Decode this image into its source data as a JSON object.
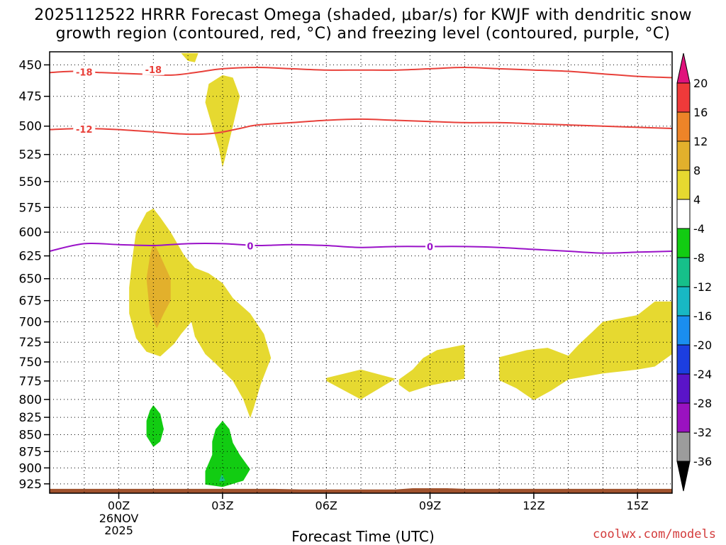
{
  "title_line1": "2025112522 HRRR Forecast Omega (shaded, μbar/s) for KWJF with dendritic snow",
  "title_line2": "growth region (contoured, red, °C) and freezing level (contoured, purple, °C)",
  "credit": "coolwx.com/models",
  "colors": {
    "snow_contour": "#e8403a",
    "freezing_contour": "#9a12c8",
    "ground": "#a0522d",
    "positive_shade": "#e6d930",
    "strong_positive_shade": "#dea52e",
    "negative_shade": "#12cc12"
  },
  "chart_data": {
    "type": "time-height contour",
    "xlabel": "Forecast Time (UTC)",
    "ylabel": "",
    "x_range_hours": [
      -2.0,
      16.0
    ],
    "x_ticks": [
      {
        "hour": 0,
        "label": "00Z",
        "sub1": "26NOV",
        "sub2": "2025"
      },
      {
        "hour": 3,
        "label": "03Z",
        "sub1": "",
        "sub2": ""
      },
      {
        "hour": 6,
        "label": "06Z",
        "sub1": "",
        "sub2": ""
      },
      {
        "hour": 9,
        "label": "09Z",
        "sub1": "",
        "sub2": ""
      },
      {
        "hour": 12,
        "label": "12Z",
        "sub1": "",
        "sub2": ""
      },
      {
        "hour": 15,
        "label": "15Z",
        "sub1": "",
        "sub2": ""
      }
    ],
    "y_range_hPa": [
      440,
      940
    ],
    "y_scale": "log-pressure",
    "y_ticks": [
      450,
      475,
      500,
      525,
      550,
      575,
      600,
      625,
      650,
      675,
      700,
      725,
      750,
      775,
      800,
      825,
      850,
      875,
      900,
      925
    ],
    "grid": "dotted",
    "colorbar": {
      "ticks": [
        "20",
        "16",
        "12",
        "8",
        "4",
        "-4",
        "-8",
        "-12",
        "-16",
        "-20",
        "-24",
        "-28",
        "-32",
        "-36"
      ],
      "bins": [
        {
          "color": "#e0127c",
          "range": ">20"
        },
        {
          "color": "#ef3a3a",
          "range": "16 to 20"
        },
        {
          "color": "#ed8428",
          "range": "12 to 16"
        },
        {
          "color": "#e2b02c",
          "range": "8 to 12"
        },
        {
          "color": "#e6d930",
          "range": "4 to 8"
        },
        {
          "color": "#ffffff",
          "range": "-4 to 4"
        },
        {
          "color": "#12cc12",
          "range": "-8 to -4"
        },
        {
          "color": "#16c08a",
          "range": "-12 to -8"
        },
        {
          "color": "#18b8c4",
          "range": "-16 to -12"
        },
        {
          "color": "#1a8ef0",
          "range": "-20 to -16"
        },
        {
          "color": "#1c3ee0",
          "range": "-24 to -20"
        },
        {
          "color": "#5a14c8",
          "range": "-28 to -24"
        },
        {
          "color": "#9a12c0",
          "range": "-32 to -28"
        },
        {
          "color": "#9c9c9c",
          "range": "-36 to -32"
        },
        {
          "color": "#000000",
          "range": "<-36"
        }
      ]
    },
    "contours": [
      {
        "name": "-18C isotherm",
        "label": "-18",
        "color": "#e8403a",
        "points": [
          [
            -2.0,
            456
          ],
          [
            -1.3,
            455
          ],
          [
            -0.5,
            456
          ],
          [
            0.5,
            457
          ],
          [
            1.5,
            458
          ],
          [
            2.2,
            456
          ],
          [
            3.0,
            453
          ],
          [
            4.0,
            452
          ],
          [
            5.0,
            453
          ],
          [
            6.0,
            454
          ],
          [
            7.0,
            454
          ],
          [
            8.0,
            454
          ],
          [
            9.0,
            453
          ],
          [
            10.0,
            452
          ],
          [
            11.0,
            453
          ],
          [
            12.0,
            454
          ],
          [
            13.0,
            455
          ],
          [
            14.0,
            457
          ],
          [
            15.0,
            459
          ],
          [
            16.0,
            460
          ]
        ],
        "labels_at": [
          [
            -1.0,
            455.5
          ],
          [
            1.0,
            453.5
          ]
        ]
      },
      {
        "name": "-12C isotherm",
        "label": "-12",
        "color": "#e8403a",
        "points": [
          [
            -2.0,
            503
          ],
          [
            -1.0,
            502
          ],
          [
            0.0,
            503
          ],
          [
            1.0,
            505
          ],
          [
            2.0,
            507
          ],
          [
            2.8,
            506
          ],
          [
            3.5,
            502
          ],
          [
            4.0,
            499
          ],
          [
            5.0,
            497
          ],
          [
            6.0,
            495
          ],
          [
            7.0,
            494
          ],
          [
            8.0,
            495
          ],
          [
            9.0,
            496
          ],
          [
            10.0,
            497
          ],
          [
            11.0,
            497
          ],
          [
            12.0,
            498
          ],
          [
            13.0,
            499
          ],
          [
            14.0,
            500
          ],
          [
            15.0,
            501
          ],
          [
            16.0,
            502
          ]
        ],
        "labels_at": [
          [
            -1.0,
            502.5
          ]
        ]
      },
      {
        "name": "0C freezing level",
        "label": "0",
        "color": "#9a12c8",
        "points": [
          [
            -2.0,
            620
          ],
          [
            -1.0,
            612
          ],
          [
            0.0,
            613
          ],
          [
            1.0,
            614
          ],
          [
            2.0,
            612
          ],
          [
            3.0,
            612
          ],
          [
            4.0,
            614
          ],
          [
            5.0,
            613
          ],
          [
            6.0,
            614
          ],
          [
            7.0,
            616
          ],
          [
            8.0,
            615
          ],
          [
            9.0,
            615
          ],
          [
            10.0,
            615
          ],
          [
            11.0,
            616
          ],
          [
            12.0,
            618
          ],
          [
            13.0,
            620
          ],
          [
            14.0,
            622
          ],
          [
            15.0,
            621
          ],
          [
            16.0,
            620
          ]
        ],
        "labels_at": [
          [
            3.8,
            614.5
          ],
          [
            9.0,
            615
          ]
        ]
      }
    ],
    "shaded_regions": [
      {
        "value_bin": "4 to 8",
        "points": [
          [
            1.8,
            441
          ],
          [
            2.3,
            441
          ],
          [
            2.2,
            448
          ],
          [
            2.0,
            447
          ]
        ]
      },
      {
        "value_bin": "4 to 8",
        "points": [
          [
            3.0,
            458
          ],
          [
            3.3,
            460
          ],
          [
            3.5,
            475
          ],
          [
            3.3,
            500
          ],
          [
            3.1,
            525
          ],
          [
            3.0,
            537
          ],
          [
            2.9,
            520
          ],
          [
            2.7,
            500
          ],
          [
            2.5,
            480
          ],
          [
            2.6,
            465
          ]
        ]
      },
      {
        "value_bin": "4 to 8",
        "points": [
          [
            0.5,
            600
          ],
          [
            0.8,
            580
          ],
          [
            1.0,
            576
          ],
          [
            1.2,
            585
          ],
          [
            1.5,
            600
          ],
          [
            1.9,
            625
          ],
          [
            2.2,
            638
          ],
          [
            2.6,
            644
          ],
          [
            3.0,
            655
          ],
          [
            3.3,
            672
          ],
          [
            3.8,
            690
          ],
          [
            4.2,
            715
          ],
          [
            4.4,
            745
          ],
          [
            4.1,
            780
          ],
          [
            3.9,
            812
          ],
          [
            3.8,
            826
          ],
          [
            3.6,
            800
          ],
          [
            3.3,
            775
          ],
          [
            2.8,
            752
          ],
          [
            2.5,
            740
          ],
          [
            2.2,
            718
          ],
          [
            2.1,
            700
          ],
          [
            1.8,
            715
          ],
          [
            1.6,
            727
          ],
          [
            1.2,
            743
          ],
          [
            0.8,
            737
          ],
          [
            0.5,
            720
          ],
          [
            0.3,
            690
          ],
          [
            0.3,
            660
          ],
          [
            0.4,
            625
          ]
        ]
      },
      {
        "value_bin": "8 to 12",
        "points": [
          [
            1.0,
            610
          ],
          [
            1.2,
            625
          ],
          [
            1.5,
            650
          ],
          [
            1.5,
            675
          ],
          [
            1.3,
            690
          ],
          [
            1.1,
            708
          ],
          [
            0.9,
            690
          ],
          [
            0.8,
            650
          ],
          [
            0.9,
            625
          ]
        ]
      },
      {
        "value_bin": "4 to 8",
        "points": [
          [
            6.0,
            771
          ],
          [
            7.0,
            760
          ],
          [
            8.0,
            772
          ],
          [
            7.0,
            800
          ],
          [
            6.0,
            775
          ]
        ]
      },
      {
        "value_bin": "4 to 8",
        "points": [
          [
            8.1,
            773
          ],
          [
            8.5,
            760
          ],
          [
            8.8,
            745
          ],
          [
            9.2,
            735
          ],
          [
            10.0,
            728
          ],
          [
            10.0,
            772
          ],
          [
            9.0,
            781
          ],
          [
            8.4,
            790
          ],
          [
            8.1,
            780
          ]
        ]
      },
      {
        "value_bin": "4 to 8",
        "points": [
          [
            11.0,
            744
          ],
          [
            11.8,
            735
          ],
          [
            12.4,
            732
          ],
          [
            13.0,
            742
          ],
          [
            13.3,
            728
          ],
          [
            13.7,
            712
          ],
          [
            14.0,
            700
          ],
          [
            15.0,
            692
          ],
          [
            15.5,
            676
          ],
          [
            16.0,
            676
          ],
          [
            16.0,
            740
          ],
          [
            15.5,
            756
          ],
          [
            15.0,
            760
          ],
          [
            14.0,
            765
          ],
          [
            13.0,
            773
          ],
          [
            12.5,
            788
          ],
          [
            12.0,
            801
          ],
          [
            11.5,
            785
          ],
          [
            11.0,
            774
          ]
        ]
      },
      {
        "value_bin": "-8 to -4",
        "points": [
          [
            1.0,
            808
          ],
          [
            1.2,
            820
          ],
          [
            1.3,
            842
          ],
          [
            1.2,
            860
          ],
          [
            1.0,
            868
          ],
          [
            0.8,
            852
          ],
          [
            0.8,
            830
          ],
          [
            0.9,
            815
          ]
        ]
      },
      {
        "value_bin": "-8 to -4",
        "points": [
          [
            3.0,
            830
          ],
          [
            3.2,
            842
          ],
          [
            3.3,
            862
          ],
          [
            3.5,
            880
          ],
          [
            3.8,
            902
          ],
          [
            3.6,
            920
          ],
          [
            3.0,
            930
          ],
          [
            2.5,
            926
          ],
          [
            2.5,
            905
          ],
          [
            2.7,
            880
          ],
          [
            2.7,
            860
          ],
          [
            2.8,
            842
          ]
        ]
      },
      {
        "value_bin": "-12 to -8",
        "points": [
          [
            2.98,
            910
          ],
          [
            3.08,
            920
          ],
          [
            2.9,
            921
          ]
        ]
      }
    ],
    "ground": {
      "label": "terrain (surface)",
      "pressure_top_hPa": 933,
      "profile": [
        [
          -2.0,
          933
        ],
        [
          4.5,
          933
        ],
        [
          5.3,
          934
        ],
        [
          8.0,
          934
        ],
        [
          8.5,
          932
        ],
        [
          9.5,
          932
        ],
        [
          10.0,
          933
        ],
        [
          16.0,
          933
        ]
      ]
    }
  }
}
